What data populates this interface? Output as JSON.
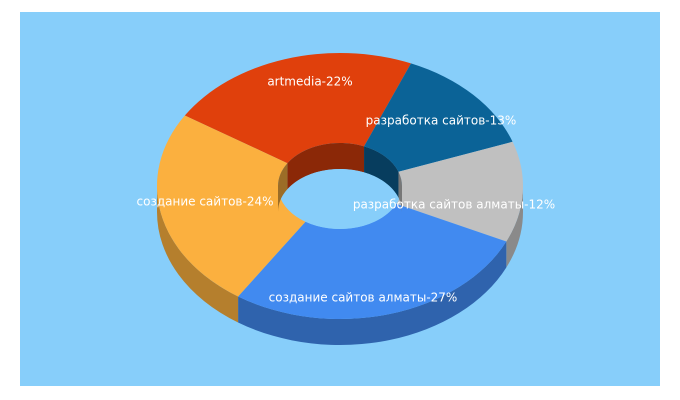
{
  "chart_data": {
    "type": "pie",
    "style": "3d-donut",
    "background": "#87cefa",
    "slices": [
      {
        "label": "artmedia-22%",
        "value": 22,
        "color": "#e0400c"
      },
      {
        "label": "разработка сайтов-13%",
        "value": 13,
        "color": "#0b6397"
      },
      {
        "label": "разработка сайтов алматы-12%",
        "value": 12,
        "color": "#c0c0c0"
      },
      {
        "label": "создание сайтов алматы-27%",
        "value": 27,
        "color": "#418af0"
      },
      {
        "label": "создание сайтов-24%",
        "value": 24,
        "color": "#fbb03f"
      }
    ]
  }
}
